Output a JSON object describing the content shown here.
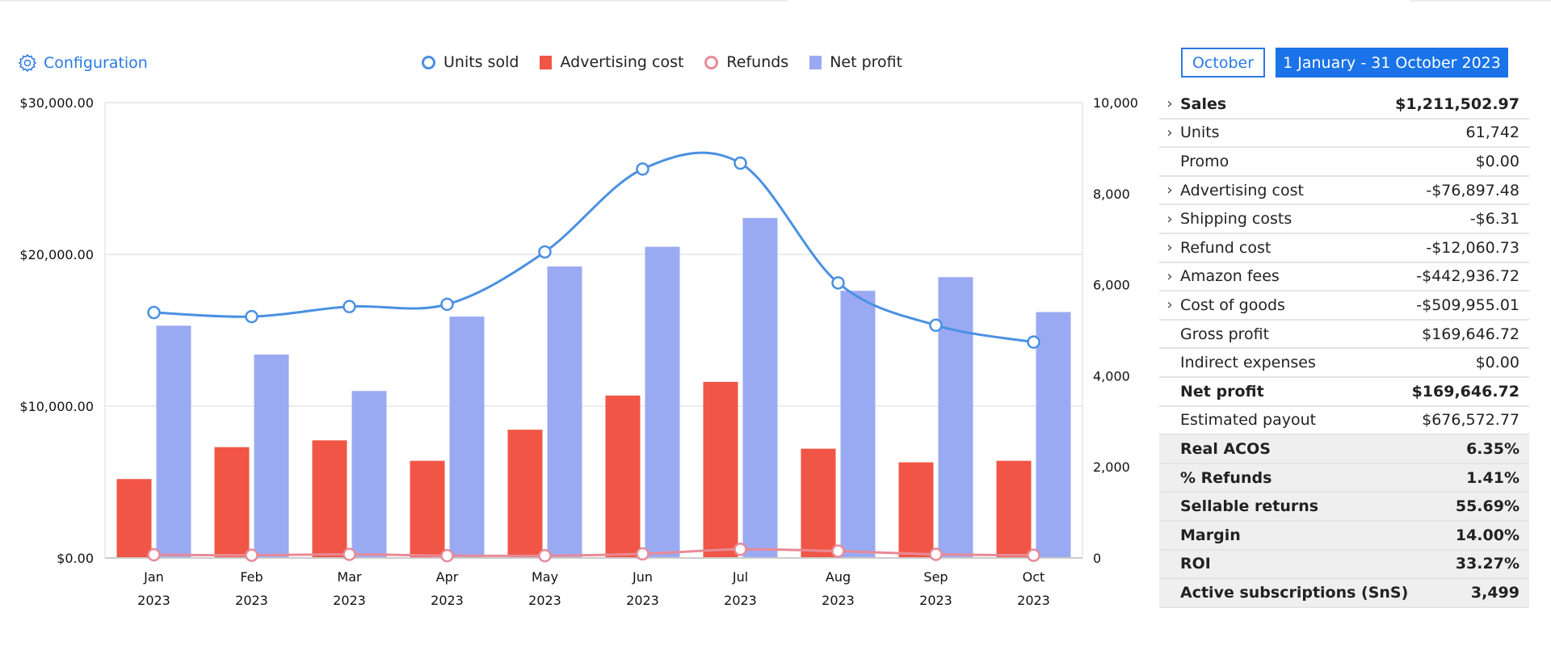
{
  "config_label": "Configuration",
  "period_buttons": {
    "month": "October",
    "range": "1 January - 31 October 2023"
  },
  "colors": {
    "units": "#4a90e2",
    "ad_cost": "#f05545",
    "refunds": "#e88a97",
    "net_profit": "#9aaaf2",
    "accent": "#1a73e8"
  },
  "chart_data": {
    "type": "bar",
    "categories": [
      "Jan",
      "Feb",
      "Mar",
      "Apr",
      "May",
      "Jun",
      "Jul",
      "Aug",
      "Sep",
      "Oct"
    ],
    "category_sub": "2023",
    "left_axis": {
      "ticks": [
        "$0.00",
        "$10,000.00",
        "$20,000.00",
        "$30,000.00"
      ],
      "ylim": [
        0,
        30000
      ]
    },
    "right_axis": {
      "ticks": [
        "0",
        "2,000",
        "4,000",
        "6,000",
        "8,000",
        "10,000"
      ],
      "ylim": [
        0,
        10000
      ]
    },
    "grid": true,
    "legend_position": "top",
    "series": [
      {
        "name": "Units sold",
        "type": "line",
        "axis": "right",
        "values": [
          5390,
          5300,
          5520,
          5570,
          6720,
          8540,
          8670,
          6040,
          5110,
          4740
        ]
      },
      {
        "name": "Advertising cost",
        "type": "bar",
        "axis": "left",
        "values": [
          5200,
          7300,
          7750,
          6400,
          8450,
          10700,
          11600,
          7200,
          6300,
          6400
        ]
      },
      {
        "name": "Refunds",
        "type": "line",
        "axis": "right",
        "values": [
          70,
          60,
          80,
          50,
          50,
          90,
          190,
          150,
          80,
          60
        ]
      },
      {
        "name": "Net profit",
        "type": "bar",
        "axis": "left",
        "values": [
          15300,
          13400,
          11000,
          15900,
          19200,
          20500,
          22400,
          17600,
          18500,
          16200
        ]
      }
    ]
  },
  "summary": [
    {
      "label": "Sales",
      "value": "$1,211,502.97",
      "expand": true,
      "bold": true,
      "gray": false
    },
    {
      "label": "Units",
      "value": "61,742",
      "expand": true,
      "bold": false,
      "gray": false
    },
    {
      "label": "Promo",
      "value": "$0.00",
      "expand": false,
      "bold": false,
      "gray": false
    },
    {
      "label": "Advertising cost",
      "value": "-$76,897.48",
      "expand": true,
      "bold": false,
      "gray": false
    },
    {
      "label": "Shipping costs",
      "value": "-$6.31",
      "expand": true,
      "bold": false,
      "gray": false
    },
    {
      "label": "Refund cost",
      "value": "-$12,060.73",
      "expand": true,
      "bold": false,
      "gray": false
    },
    {
      "label": "Amazon fees",
      "value": "-$442,936.72",
      "expand": true,
      "bold": false,
      "gray": false
    },
    {
      "label": "Cost of goods",
      "value": "-$509,955.01",
      "expand": true,
      "bold": false,
      "gray": false
    },
    {
      "label": "Gross profit",
      "value": "$169,646.72",
      "expand": false,
      "bold": false,
      "gray": false
    },
    {
      "label": "Indirect expenses",
      "value": "$0.00",
      "expand": false,
      "bold": false,
      "gray": false
    },
    {
      "label": "Net profit",
      "value": "$169,646.72",
      "expand": false,
      "bold": true,
      "gray": false
    },
    {
      "label": "Estimated payout",
      "value": "$676,572.77",
      "expand": false,
      "bold": false,
      "gray": false
    },
    {
      "label": "Real ACOS",
      "value": "6.35%",
      "expand": false,
      "bold": true,
      "gray": true
    },
    {
      "label": "% Refunds",
      "value": "1.41%",
      "expand": false,
      "bold": true,
      "gray": true
    },
    {
      "label": "Sellable returns",
      "value": "55.69%",
      "expand": false,
      "bold": true,
      "gray": true
    },
    {
      "label": "Margin",
      "value": "14.00%",
      "expand": false,
      "bold": true,
      "gray": true
    },
    {
      "label": "ROI",
      "value": "33.27%",
      "expand": false,
      "bold": true,
      "gray": true
    },
    {
      "label": "Active subscriptions (SnS)",
      "value": "3,499",
      "expand": false,
      "bold": true,
      "gray": true
    }
  ]
}
